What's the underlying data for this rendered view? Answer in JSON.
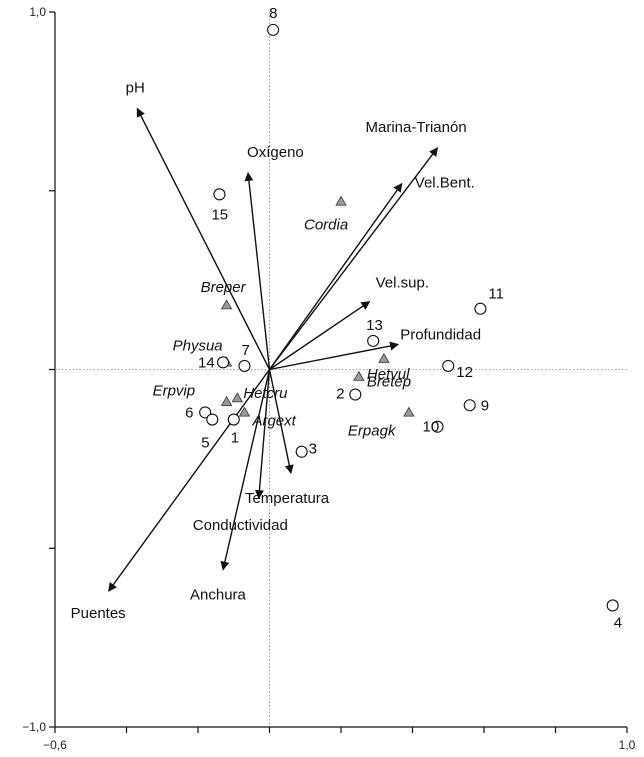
{
  "chart_data": {
    "type": "scatter",
    "title": "",
    "xlabel": "",
    "ylabel": "",
    "xlim": [
      -0.6,
      1.0
    ],
    "ylim": [
      -1.0,
      1.0
    ],
    "x_ticks": [
      -0.6,
      -0.4,
      -0.2,
      0.0,
      0.2,
      0.4,
      0.6,
      0.8,
      1.0
    ],
    "y_ticks": [
      -1.0,
      -0.5,
      0.0,
      0.5,
      1.0
    ],
    "x_tick_labels": [
      {
        "value": -0.6,
        "text": "−0,6"
      },
      {
        "value": 1.0,
        "text": "1,0"
      }
    ],
    "y_tick_labels": [
      {
        "value": 1.0,
        "text": "1,0"
      },
      {
        "value": -1.0,
        "text": "−1,0"
      }
    ],
    "grid": false,
    "reference_lines": {
      "x": 0.0,
      "y": 0.0,
      "style": "dotted"
    },
    "colors": {
      "axis": "#111111",
      "arrow": "#111111",
      "triangle_fill": "#9a9a9a",
      "circle_fill": "#ffffff",
      "reference": "#888888"
    },
    "environmental_variables": [
      {
        "name": "pH",
        "x": -0.37,
        "y": 0.73
      },
      {
        "name": "Oxígeno",
        "x": -0.06,
        "y": 0.55
      },
      {
        "name": "Marina-Trianón",
        "x": 0.47,
        "y": 0.62
      },
      {
        "name": "Vel.Bent.",
        "x": 0.37,
        "y": 0.52
      },
      {
        "name": "Vel.sup.",
        "x": 0.28,
        "y": 0.19
      },
      {
        "name": "Profundidad",
        "x": 0.36,
        "y": 0.07
      },
      {
        "name": "Temperatura",
        "x": 0.06,
        "y": -0.29
      },
      {
        "name": "Conductividad",
        "x": -0.03,
        "y": -0.36
      },
      {
        "name": "Anchura",
        "x": -0.13,
        "y": -0.56
      },
      {
        "name": "Puentes",
        "x": -0.45,
        "y": -0.62
      }
    ],
    "species": [
      {
        "name": "Cordia",
        "x": 0.2,
        "y": 0.47
      },
      {
        "name": "Breper",
        "x": -0.12,
        "y": 0.18
      },
      {
        "name": "Physua",
        "x": -0.12,
        "y": 0.02
      },
      {
        "name": "Hetvul",
        "x": 0.32,
        "y": 0.03
      },
      {
        "name": "Bretep",
        "x": 0.25,
        "y": -0.02
      },
      {
        "name": "Erpvip",
        "x": -0.12,
        "y": -0.09
      },
      {
        "name": "Hetcru",
        "x": -0.09,
        "y": -0.08
      },
      {
        "name": "Argext",
        "x": -0.07,
        "y": -0.12
      },
      {
        "name": "Erpagk",
        "x": 0.39,
        "y": -0.12
      }
    ],
    "sites": [
      {
        "name": "8",
        "x": 0.01,
        "y": 0.95
      },
      {
        "name": "15",
        "x": -0.14,
        "y": 0.49
      },
      {
        "name": "11",
        "x": 0.59,
        "y": 0.17
      },
      {
        "name": "13",
        "x": 0.29,
        "y": 0.08
      },
      {
        "name": "12",
        "x": 0.5,
        "y": 0.01
      },
      {
        "name": "14",
        "x": -0.13,
        "y": 0.02
      },
      {
        "name": "7",
        "x": -0.07,
        "y": 0.01
      },
      {
        "name": "2",
        "x": 0.24,
        "y": -0.07
      },
      {
        "name": "9",
        "x": 0.56,
        "y": -0.1
      },
      {
        "name": "10",
        "x": 0.47,
        "y": -0.16
      },
      {
        "name": "6",
        "x": -0.18,
        "y": -0.12
      },
      {
        "name": "5",
        "x": -0.16,
        "y": -0.14
      },
      {
        "name": "1",
        "x": -0.1,
        "y": -0.14
      },
      {
        "name": "3",
        "x": 0.09,
        "y": -0.23
      },
      {
        "name": "4",
        "x": 0.96,
        "y": -0.66
      }
    ]
  }
}
